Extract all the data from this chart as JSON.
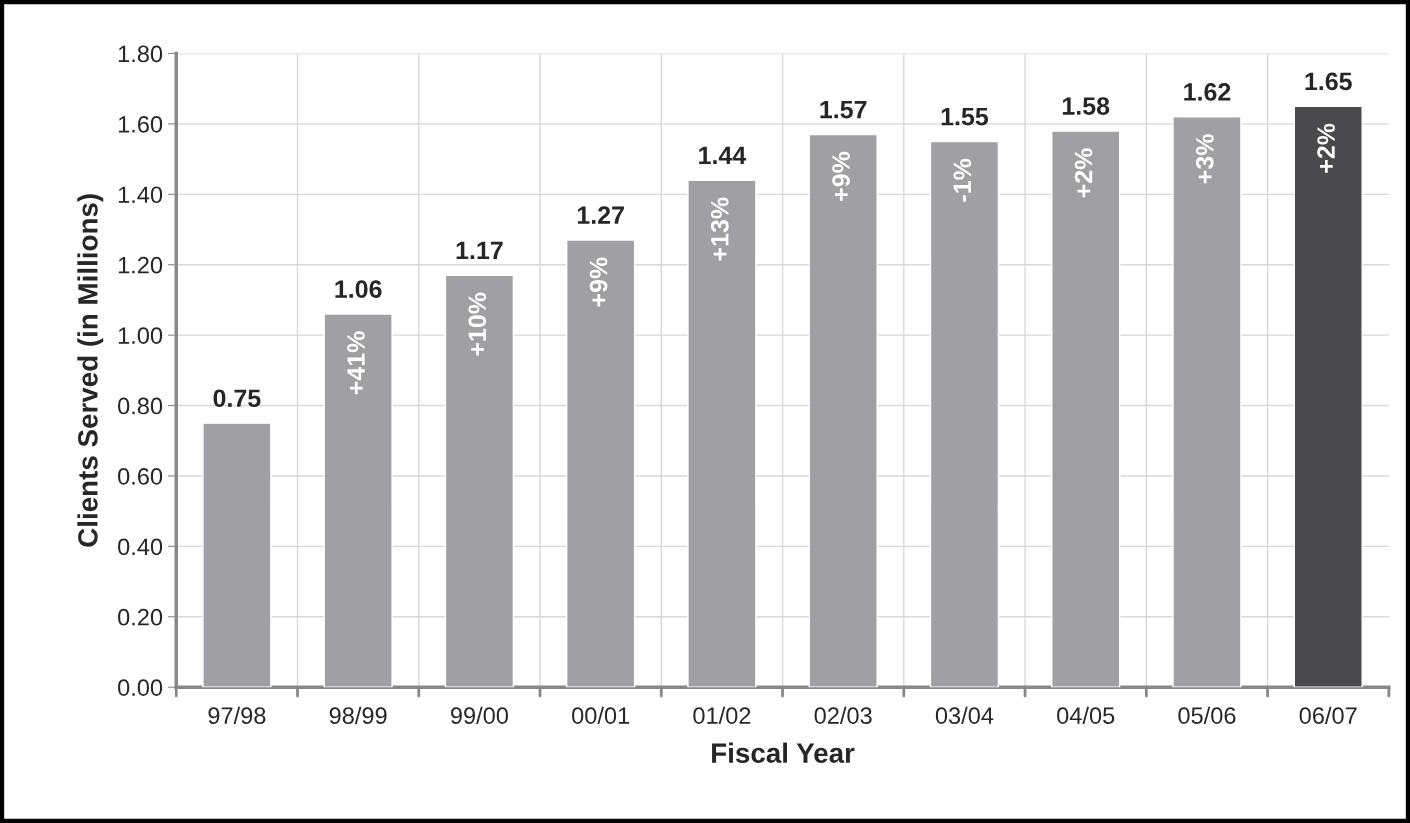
{
  "chart_data": {
    "type": "bar",
    "xlabel": "Fiscal Year",
    "ylabel": "Clients Served (in Millions)",
    "categories": [
      "97/98",
      "98/99",
      "99/00",
      "00/01",
      "01/02",
      "02/03",
      "03/04",
      "04/05",
      "05/06",
      "06/07"
    ],
    "values": [
      0.75,
      1.06,
      1.17,
      1.27,
      1.44,
      1.57,
      1.55,
      1.58,
      1.62,
      1.65
    ],
    "colors": [
      "#a0a0a4",
      "#a0a0a4",
      "#a0a0a4",
      "#a0a0a4",
      "#a0a0a4",
      "#a0a0a4",
      "#a0a0a4",
      "#a0a0a4",
      "#a0a0a4",
      "#4a4a4c"
    ],
    "data_labels": true,
    "ylim": [
      0,
      1.8
    ],
    "yticks": [
      {
        "value": 0,
        "label": "0.00"
      },
      {
        "value": 0.2,
        "label": "0.20"
      },
      {
        "value": 0.4,
        "label": "0.40"
      },
      {
        "value": 0.6,
        "label": "0.60"
      },
      {
        "value": 0.8,
        "label": "0.80"
      },
      {
        "value": 1.0,
        "label": "1.00"
      },
      {
        "value": 1.2,
        "label": "1.20"
      },
      {
        "value": 1.4,
        "label": "1.40"
      },
      {
        "value": 1.6,
        "label": "1.60"
      },
      {
        "value": 1.8,
        "label": "1.80"
      }
    ],
    "grid": true,
    "annotations": [
      {
        "text": "+41%",
        "x": "98/99",
        "y": 1.06
      },
      {
        "text": "+10%",
        "x": "99/00",
        "y": 1.17
      },
      {
        "text": "+9%",
        "x": "00/01",
        "y": 1.27
      },
      {
        "text": "+13%",
        "x": "01/02",
        "y": 1.44
      },
      {
        "text": "+9%",
        "x": "02/03",
        "y": 1.57
      },
      {
        "text": "-1%",
        "x": "03/04",
        "y": 1.55
      },
      {
        "text": "+2%",
        "x": "04/05",
        "y": 1.58
      },
      {
        "text": "+3%",
        "x": "05/06",
        "y": 1.62
      },
      {
        "text": "+2%",
        "x": "06/07",
        "y": 1.65
      }
    ]
  }
}
